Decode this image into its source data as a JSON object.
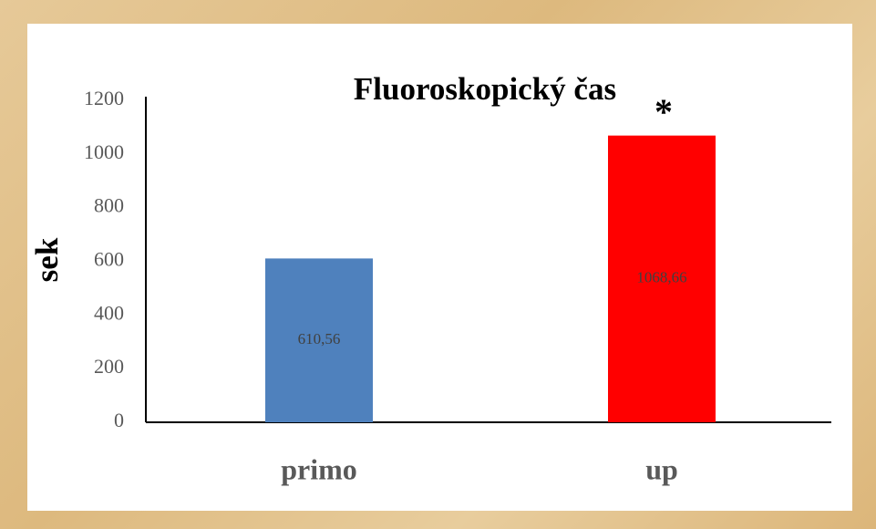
{
  "chart_data": {
    "type": "bar",
    "title": "Fluoroskopický čas",
    "y_label": "sek",
    "annotation": "*",
    "categories": [
      "primo",
      "up"
    ],
    "values": [
      610.56,
      1068.66
    ],
    "value_labels": [
      "610,56",
      "1068,66"
    ],
    "colors": [
      "#4f81bd",
      "#ff0000"
    ],
    "ylim": [
      0,
      1200
    ],
    "yticks": [
      0,
      200,
      400,
      600,
      800,
      1000,
      1200
    ],
    "grid": false
  }
}
